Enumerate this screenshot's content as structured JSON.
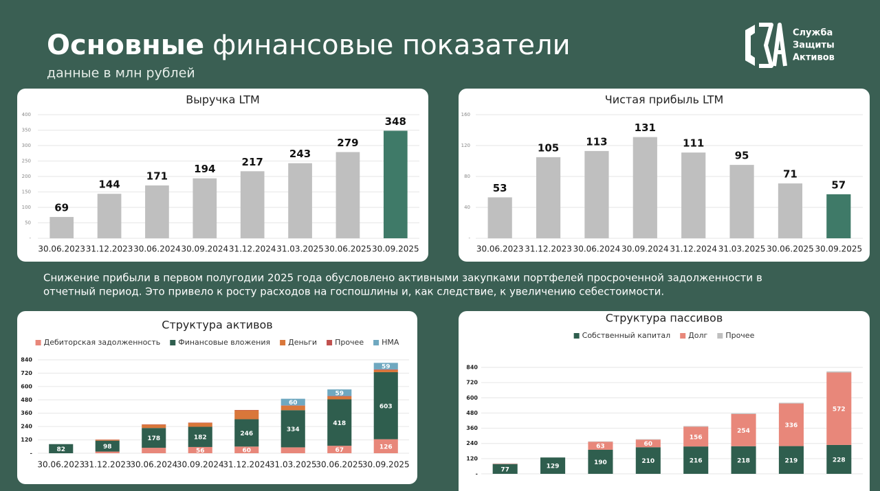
{
  "header": {
    "title_bold": "Основные",
    "title_rest": "финансовые показатели",
    "subtitle": "данные в млн рублей"
  },
  "logo": {
    "lines": [
      "Служба",
      "Защиты",
      "Активов"
    ]
  },
  "note": {
    "lines": [
      "Снижение прибыли в первом полугодии 2025 года обусловлено активными закупками портфелей просроченной задолженности в",
      "отчетный период. Это привело к росту расходов на госпошлины и, как следствие, к увеличению себестоимости."
    ]
  },
  "chart_data": [
    {
      "type": "bar",
      "title": "Выручка LTM",
      "categories": [
        "30.06.2023",
        "31.12.2023",
        "30.06.2024",
        "30.09.2024",
        "31.12.2024",
        "31.03.2025",
        "30.06.2025",
        "30.09.2025"
      ],
      "values": [
        69,
        144,
        171,
        194,
        217,
        243,
        279,
        348
      ],
      "colors": [
        "#bfbfbf",
        "#bfbfbf",
        "#bfbfbf",
        "#bfbfbf",
        "#bfbfbf",
        "#bfbfbf",
        "#bfbfbf",
        "#3f7a68"
      ],
      "ylim": [
        0,
        400
      ],
      "yticks": [
        {
          "value": 0,
          "label": "-"
        },
        50,
        100,
        150,
        200,
        250,
        300,
        350,
        400
      ],
      "grid": true
    },
    {
      "type": "bar",
      "title": "Чистая прибыль LTM",
      "categories": [
        "30.06.2023",
        "31.12.2023",
        "30.06.2024",
        "30.09.2024",
        "31.12.2024",
        "31.03.2025",
        "30.06.2025",
        "30.09.2025"
      ],
      "values": [
        53,
        105,
        113,
        131,
        111,
        95,
        71,
        57
      ],
      "colors": [
        "#bfbfbf",
        "#bfbfbf",
        "#bfbfbf",
        "#bfbfbf",
        "#bfbfbf",
        "#bfbfbf",
        "#bfbfbf",
        "#3f7a68"
      ],
      "ylim": [
        0,
        160
      ],
      "yticks": [
        {
          "value": 0,
          "label": "-"
        },
        40,
        80,
        120,
        160
      ],
      "grid": true
    },
    {
      "type": "bar",
      "stacked": true,
      "title": "Структура активов",
      "categories": [
        "30.06.2023",
        "31.12.2023",
        "30.06.2024",
        "30.09.2024",
        "31.12.2024",
        "31.03.2025",
        "30.06.2025",
        "30.09.2025"
      ],
      "series": [
        {
          "name": "Дебиторская задолженность",
          "color": "#e8877a",
          "show_labels": true,
          "values": [
            0,
            15,
            49,
            56,
            60,
            53,
            67,
            126
          ]
        },
        {
          "name": "Финансовые вложения",
          "color": "#2f5e4e",
          "show_labels": true,
          "values": [
            82,
            98,
            178,
            182,
            246,
            334,
            418,
            603
          ]
        },
        {
          "name": "Деньги",
          "color": "#d9773a",
          "show_labels": false,
          "values": [
            0,
            8,
            30,
            35,
            80,
            40,
            25,
            20
          ]
        },
        {
          "name": "Прочее",
          "color": "#c0504d",
          "show_labels": false,
          "values": [
            0,
            2,
            3,
            3,
            3,
            3,
            5,
            5
          ]
        },
        {
          "name": "НМА",
          "color": "#6fa8c0",
          "show_labels": true,
          "values": [
            0,
            0,
            0,
            0,
            0,
            60,
            59,
            59
          ]
        }
      ],
      "ylim": [
        0,
        840
      ],
      "yticks": [
        {
          "value": 0,
          "label": "-"
        },
        120,
        240,
        360,
        480,
        600,
        720,
        840
      ],
      "grid": true,
      "legend": "top"
    },
    {
      "type": "bar",
      "stacked": true,
      "title": "Структура пассивов",
      "categories": [
        null,
        null,
        null,
        null,
        null,
        null,
        null,
        null
      ],
      "series": [
        {
          "name": "Собственный капитал",
          "color": "#2f5e4e",
          "show_labels": true,
          "values": [
            77,
            129,
            190,
            210,
            216,
            218,
            219,
            228
          ]
        },
        {
          "name": "Долг",
          "color": "#e8877a",
          "show_labels": true,
          "values": [
            3,
            0,
            63,
            60,
            156,
            254,
            336,
            572
          ]
        },
        {
          "name": "Прочее",
          "color": "#bfbfbf",
          "show_labels": false,
          "values": [
            3,
            0,
            3,
            3,
            5,
            5,
            6,
            8
          ]
        }
      ],
      "ylim": [
        0,
        840
      ],
      "yticks": [
        {
          "value": 0,
          "label": "-"
        },
        120,
        240,
        360,
        480,
        600,
        720,
        840
      ],
      "grid": true,
      "legend": "top"
    }
  ]
}
